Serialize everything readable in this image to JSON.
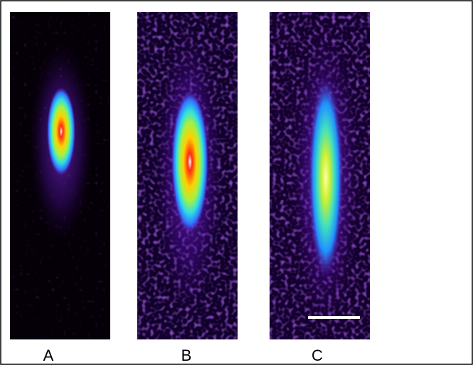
{
  "labels": [
    "A",
    "B",
    "C"
  ]
}
